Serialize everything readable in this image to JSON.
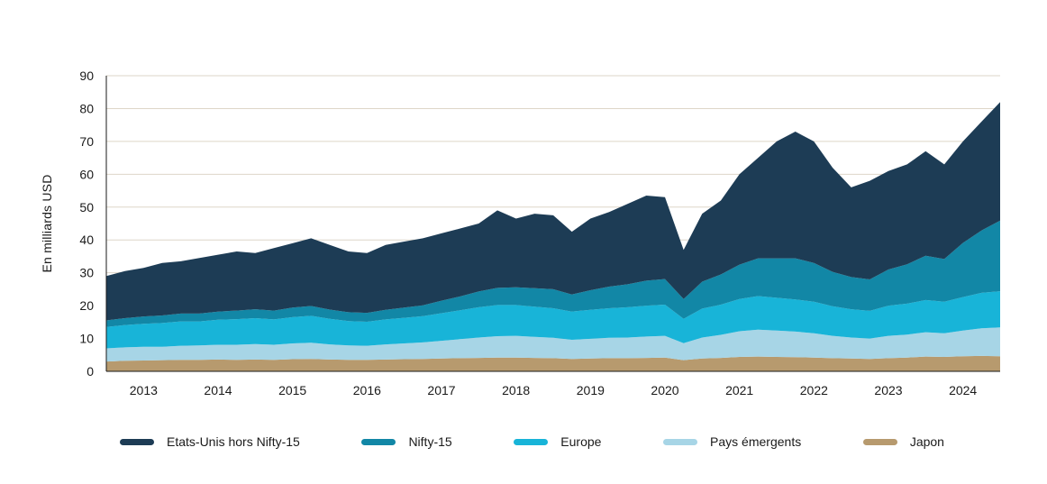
{
  "chart_data": {
    "type": "area",
    "stacked": true,
    "title": "",
    "xlabel": "",
    "ylabel": "En milliards USD",
    "ylim": [
      0,
      90
    ],
    "yticks": [
      0,
      10,
      20,
      30,
      40,
      50,
      60,
      70,
      80,
      90
    ],
    "year_ticks": [
      2013,
      2014,
      2015,
      2016,
      2017,
      2018,
      2019,
      2020,
      2021,
      2022,
      2023,
      2024
    ],
    "grid": "horizontal",
    "legend_position": "bottom",
    "x": [
      2012.5,
      2012.75,
      2013.0,
      2013.25,
      2013.5,
      2013.75,
      2014.0,
      2014.25,
      2014.5,
      2014.75,
      2015.0,
      2015.25,
      2015.5,
      2015.75,
      2016.0,
      2016.25,
      2016.5,
      2016.75,
      2017.0,
      2017.25,
      2017.5,
      2017.75,
      2018.0,
      2018.25,
      2018.5,
      2018.75,
      2019.0,
      2019.25,
      2019.5,
      2019.75,
      2020.0,
      2020.25,
      2020.5,
      2020.75,
      2021.0,
      2021.25,
      2021.5,
      2021.75,
      2022.0,
      2022.25,
      2022.5,
      2022.75,
      2023.0,
      2023.25,
      2023.5,
      2023.75,
      2024.0,
      2024.25,
      2024.5
    ],
    "series": [
      {
        "name": "Japon",
        "color": "#b79a6e",
        "values": [
          3.0,
          3.2,
          3.3,
          3.4,
          3.5,
          3.5,
          3.6,
          3.5,
          3.6,
          3.5,
          3.7,
          3.8,
          3.6,
          3.5,
          3.5,
          3.6,
          3.7,
          3.8,
          3.9,
          4.0,
          4.1,
          4.2,
          4.2,
          4.1,
          4.0,
          3.8,
          3.9,
          4.0,
          4.0,
          4.1,
          4.2,
          3.4,
          3.9,
          4.1,
          4.4,
          4.5,
          4.4,
          4.3,
          4.2,
          4.0,
          3.9,
          3.8,
          4.0,
          4.2,
          4.5,
          4.4,
          4.6,
          4.7,
          4.6
        ]
      },
      {
        "name": "Pays émergents",
        "color": "#a7d5e6",
        "values": [
          4.0,
          4.1,
          4.2,
          4.1,
          4.3,
          4.4,
          4.5,
          4.6,
          4.7,
          4.6,
          4.8,
          4.9,
          4.6,
          4.4,
          4.3,
          4.6,
          4.8,
          5.0,
          5.4,
          5.8,
          6.2,
          6.5,
          6.6,
          6.4,
          6.2,
          5.8,
          6.0,
          6.2,
          6.3,
          6.5,
          6.6,
          5.2,
          6.4,
          7.0,
          7.8,
          8.2,
          8.0,
          7.8,
          7.4,
          6.8,
          6.4,
          6.2,
          6.8,
          7.0,
          7.4,
          7.2,
          7.8,
          8.4,
          8.8
        ]
      },
      {
        "name": "Europe",
        "color": "#18b4d8",
        "values": [
          6.5,
          6.8,
          7.0,
          7.2,
          7.4,
          7.3,
          7.6,
          7.8,
          7.9,
          7.7,
          8.0,
          8.2,
          7.8,
          7.4,
          7.3,
          7.6,
          7.8,
          8.0,
          8.4,
          8.8,
          9.2,
          9.5,
          9.4,
          9.2,
          9.0,
          8.6,
          8.8,
          9.0,
          9.2,
          9.4,
          9.5,
          7.4,
          8.8,
          9.2,
          9.8,
          10.2,
          10.0,
          9.8,
          9.6,
          9.0,
          8.6,
          8.4,
          9.2,
          9.4,
          9.8,
          9.6,
          10.2,
          10.8,
          11.0
        ]
      },
      {
        "name": "Nifty-15",
        "color": "#1287a6",
        "values": [
          2.0,
          2.1,
          2.2,
          2.3,
          2.4,
          2.4,
          2.5,
          2.6,
          2.7,
          2.7,
          2.9,
          3.0,
          2.8,
          2.7,
          2.7,
          2.9,
          3.1,
          3.3,
          3.8,
          4.2,
          4.8,
          5.2,
          5.4,
          5.6,
          5.8,
          5.2,
          6.0,
          6.6,
          7.0,
          7.6,
          7.8,
          6.0,
          8.2,
          9.2,
          10.5,
          11.5,
          12.0,
          12.5,
          11.8,
          10.5,
          9.8,
          9.6,
          11.0,
          12.0,
          13.5,
          13.0,
          16.5,
          19.0,
          21.5
        ]
      },
      {
        "name": "Etats-Unis hors Nifty-15",
        "color": "#1d3c55",
        "values": [
          13.5,
          14.3,
          14.8,
          16.0,
          15.9,
          16.9,
          17.3,
          18.0,
          17.1,
          19.0,
          19.6,
          20.6,
          19.7,
          18.5,
          18.2,
          19.8,
          20.1,
          20.4,
          20.5,
          20.7,
          20.7,
          23.6,
          20.9,
          22.7,
          22.5,
          19.1,
          21.8,
          22.7,
          24.5,
          25.9,
          24.9,
          15.0,
          20.7,
          22.5,
          27.5,
          30.6,
          35.6,
          38.6,
          37.0,
          31.7,
          27.3,
          30.0,
          30.0,
          30.4,
          31.8,
          28.8,
          30.9,
          33.1,
          36.1
        ]
      }
    ],
    "legend": [
      {
        "label": "Etats-Unis hors Nifty-15",
        "color": "#1d3c55"
      },
      {
        "label": "Nifty-15",
        "color": "#1287a6"
      },
      {
        "label": "Europe",
        "color": "#18b4d8"
      },
      {
        "label": "Pays émergents",
        "color": "#a7d5e6"
      },
      {
        "label": "Japon",
        "color": "#b79a6e"
      }
    ]
  },
  "styles": {
    "background": "#ffffff",
    "gridline_color": "#ded6c8",
    "axis_color": "#1a1a1a",
    "text_color": "#1a1a1a"
  }
}
